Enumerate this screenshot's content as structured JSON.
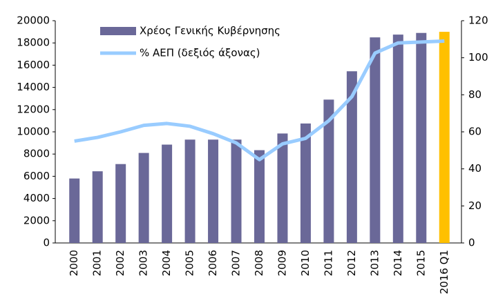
{
  "chart_data": {
    "type": "bar_line",
    "categories": [
      "2000",
      "2001",
      "2002",
      "2003",
      "2004",
      "2005",
      "2006",
      "2007",
      "2008",
      "2009",
      "2010",
      "2011",
      "2012",
      "2013",
      "2014",
      "2015",
      "2016 Q1"
    ],
    "series": [
      {
        "name": "Χρέος Γενικής Κυβέρνησης",
        "type": "bar",
        "color": "#6a6898",
        "colors": [
          "#6a6898",
          "#6a6898",
          "#6a6898",
          "#6a6898",
          "#6a6898",
          "#6a6898",
          "#6a6898",
          "#6a6898",
          "#6a6898",
          "#6a6898",
          "#6a6898",
          "#6a6898",
          "#6a6898",
          "#6a6898",
          "#6a6898",
          "#6a6898",
          "#ffc000"
        ],
        "values": [
          5800,
          6450,
          7100,
          8100,
          8850,
          9300,
          9300,
          9300,
          8350,
          9850,
          10750,
          12900,
          15450,
          18500,
          18750,
          18900,
          19000
        ]
      },
      {
        "name": "% ΑΕΠ (δεξιός άξονας)",
        "type": "line",
        "axis": "y2",
        "color": "#99ccff",
        "values": [
          55,
          57,
          60,
          63.5,
          64.5,
          63,
          59,
          54,
          45,
          53.5,
          56.5,
          66,
          79,
          102.5,
          108,
          108.5,
          109
        ]
      }
    ],
    "ylim": [
      0,
      20000
    ],
    "yticks": [
      0,
      2000,
      4000,
      6000,
      8000,
      10000,
      12000,
      14000,
      16000,
      18000,
      20000
    ],
    "y2lim": [
      0,
      120
    ],
    "y2ticks": [
      0,
      20,
      40,
      60,
      80,
      100,
      120
    ],
    "legend": "upper left"
  }
}
